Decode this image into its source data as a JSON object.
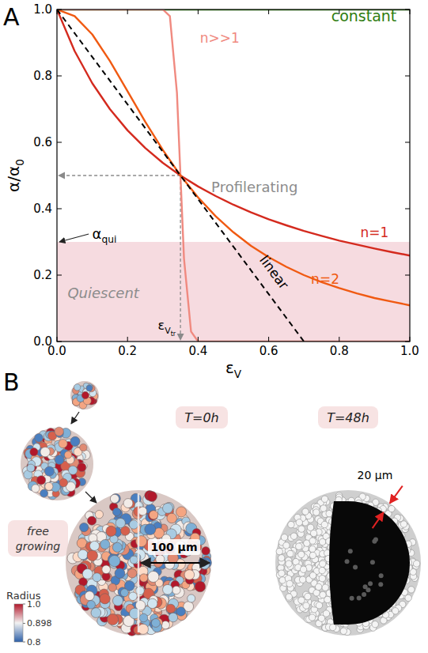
{
  "panel_labels": [
    "A",
    "B"
  ],
  "chart_data": {
    "type": "line",
    "xlabel": {
      "text": "ε",
      "sub": "V"
    },
    "ylabel": {
      "text": "α/α",
      "sub": "0"
    },
    "xlim": [
      0,
      1
    ],
    "ylim": [
      0,
      1
    ],
    "xticks": [
      {
        "value": 0,
        "label": "0.0"
      },
      0.2,
      0.4,
      0.6,
      0.8,
      {
        "value": 1,
        "label": "1.0"
      }
    ],
    "yticks": [
      {
        "value": 0,
        "label": "0.0"
      },
      0.2,
      0.4,
      0.6,
      0.8,
      {
        "value": 1,
        "label": "1.0"
      }
    ],
    "grid": false,
    "series": [
      {
        "name": "constant",
        "color": "#2f7d10",
        "line_style": "solid",
        "x": [
          0,
          1
        ],
        "values": [
          1,
          1
        ]
      },
      {
        "name": "n>>1",
        "color": "#f08a80",
        "line_style": "solid",
        "x": [
          0,
          0.3,
          0.32,
          0.34,
          0.35,
          0.36,
          0.38,
          0.4,
          1
        ],
        "values": [
          1,
          1,
          0.98,
          0.75,
          0.5,
          0.25,
          0.03,
          0,
          0
        ]
      },
      {
        "name": "n=1",
        "color": "#d42a1e",
        "line_style": "solid",
        "x": [
          0,
          0.05,
          0.1,
          0.15,
          0.2,
          0.25,
          0.3,
          0.35,
          0.4,
          0.45,
          0.5,
          0.55,
          0.6,
          0.65,
          0.7,
          0.75,
          0.8,
          0.85,
          0.9,
          0.95,
          1
        ],
        "values": [
          1,
          0.875,
          0.778,
          0.7,
          0.636,
          0.583,
          0.538,
          0.5,
          0.467,
          0.438,
          0.412,
          0.389,
          0.368,
          0.35,
          0.333,
          0.318,
          0.304,
          0.292,
          0.28,
          0.269,
          0.259
        ]
      },
      {
        "name": "n=2",
        "color": "#f05a12",
        "line_style": "solid",
        "x": [
          0,
          0.05,
          0.1,
          0.15,
          0.2,
          0.25,
          0.3,
          0.35,
          0.4,
          0.45,
          0.5,
          0.55,
          0.6,
          0.65,
          0.7,
          0.75,
          0.8,
          0.85,
          0.9,
          0.95,
          1
        ],
        "values": [
          1,
          0.98,
          0.925,
          0.845,
          0.754,
          0.662,
          0.577,
          0.5,
          0.434,
          0.377,
          0.329,
          0.288,
          0.254,
          0.225,
          0.2,
          0.179,
          0.161,
          0.145,
          0.131,
          0.12,
          0.109
        ]
      },
      {
        "name": "linear",
        "color": "#000000",
        "line_style": "dashed",
        "x": [
          0,
          0.7
        ],
        "values": [
          1,
          0
        ]
      }
    ],
    "annotations": [
      "Profilerating"
    ],
    "quiescent": {
      "label": "Quiescent",
      "y": 0.3,
      "color": "#f6dbe0",
      "marker_label": {
        "text": "α",
        "sub": "qui"
      }
    },
    "threshold": {
      "x": 0.35,
      "y": 0.5,
      "label": {
        "text": "ε",
        "sub": "V",
        "subsub": "tr"
      }
    }
  },
  "panel_b": {
    "free_growing": [
      "free",
      "growing"
    ],
    "time_labels": [
      "T=0h",
      "T=48h"
    ],
    "scale_labels": [
      "100 µm",
      "20 µm"
    ],
    "colorbar": {
      "label": "Radius",
      "range": [
        0.8,
        1
      ],
      "ticks": [
        {
          "value": 1,
          "label": "1.0"
        },
        0.898,
        0.8
      ]
    }
  }
}
